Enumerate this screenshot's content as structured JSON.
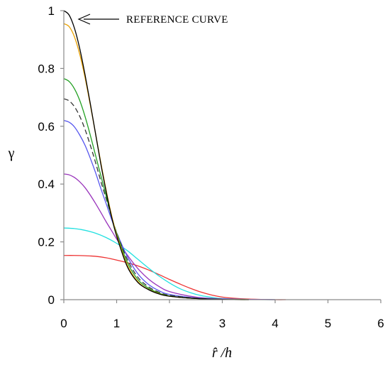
{
  "chart_data": {
    "type": "line",
    "title": "",
    "xlabel": "r̂ /h",
    "ylabel": "γ",
    "xlim": [
      0,
      6
    ],
    "ylim": [
      0,
      1
    ],
    "x_ticks": [
      "0",
      "1",
      "2",
      "3",
      "4",
      "5",
      "6"
    ],
    "y_ticks": [
      "0",
      "0.2",
      "0.4",
      "0.6",
      "0.8",
      "1"
    ],
    "grid": false,
    "legend": "none",
    "annotation": {
      "text": "REFERENCE CURVE",
      "x": 0,
      "y": 1
    },
    "series": [
      {
        "color": "#000000",
        "style": "solid",
        "points": [
          [
            0,
            1.0
          ],
          [
            0.1,
            0.985
          ],
          [
            0.2,
            0.94
          ],
          [
            0.3,
            0.87
          ],
          [
            0.4,
            0.78
          ],
          [
            0.5,
            0.68
          ],
          [
            0.6,
            0.575
          ],
          [
            0.7,
            0.47
          ],
          [
            0.8,
            0.375
          ],
          [
            0.9,
            0.29
          ],
          [
            1.0,
            0.22
          ],
          [
            1.2,
            0.115
          ],
          [
            1.4,
            0.06
          ],
          [
            1.6,
            0.035
          ],
          [
            1.8,
            0.02
          ],
          [
            2.0,
            0.012
          ],
          [
            2.5,
            0.004
          ],
          [
            3.0,
            0.001
          ],
          [
            3.5,
            0.0
          ]
        ]
      },
      {
        "color": "#E8A000",
        "style": "solid",
        "points": [
          [
            0,
            0.955
          ],
          [
            0.1,
            0.945
          ],
          [
            0.2,
            0.91
          ],
          [
            0.3,
            0.85
          ],
          [
            0.4,
            0.77
          ],
          [
            0.5,
            0.675
          ],
          [
            0.6,
            0.575
          ],
          [
            0.7,
            0.475
          ],
          [
            0.8,
            0.38
          ],
          [
            0.9,
            0.295
          ],
          [
            1.0,
            0.225
          ],
          [
            1.2,
            0.12
          ],
          [
            1.4,
            0.063
          ],
          [
            1.6,
            0.036
          ],
          [
            1.8,
            0.021
          ],
          [
            2.0,
            0.012
          ],
          [
            2.5,
            0.004
          ],
          [
            3.0,
            0.001
          ],
          [
            3.5,
            0.0
          ]
        ]
      },
      {
        "color": "#22A022",
        "style": "solid",
        "points": [
          [
            0,
            0.765
          ],
          [
            0.1,
            0.755
          ],
          [
            0.2,
            0.73
          ],
          [
            0.3,
            0.69
          ],
          [
            0.4,
            0.635
          ],
          [
            0.5,
            0.57
          ],
          [
            0.6,
            0.5
          ],
          [
            0.7,
            0.43
          ],
          [
            0.8,
            0.36
          ],
          [
            0.9,
            0.29
          ],
          [
            1.0,
            0.23
          ],
          [
            1.2,
            0.13
          ],
          [
            1.4,
            0.07
          ],
          [
            1.6,
            0.04
          ],
          [
            1.8,
            0.023
          ],
          [
            2.0,
            0.013
          ],
          [
            2.5,
            0.004
          ],
          [
            3.0,
            0.001
          ],
          [
            3.5,
            0.0
          ]
        ]
      },
      {
        "color": "#333333",
        "style": "dashed",
        "points": [
          [
            0,
            0.695
          ],
          [
            0.1,
            0.688
          ],
          [
            0.2,
            0.668
          ],
          [
            0.3,
            0.635
          ],
          [
            0.4,
            0.59
          ],
          [
            0.5,
            0.535
          ],
          [
            0.6,
            0.475
          ],
          [
            0.7,
            0.41
          ],
          [
            0.8,
            0.35
          ],
          [
            0.9,
            0.29
          ],
          [
            1.0,
            0.232
          ],
          [
            1.2,
            0.14
          ],
          [
            1.4,
            0.078
          ],
          [
            1.6,
            0.045
          ],
          [
            1.8,
            0.026
          ],
          [
            2.0,
            0.015
          ],
          [
            2.5,
            0.005
          ],
          [
            3.0,
            0.001
          ],
          [
            3.5,
            0.0
          ]
        ]
      },
      {
        "color": "#5555EE",
        "style": "solid",
        "points": [
          [
            0,
            0.62
          ],
          [
            0.1,
            0.614
          ],
          [
            0.2,
            0.598
          ],
          [
            0.3,
            0.57
          ],
          [
            0.4,
            0.535
          ],
          [
            0.5,
            0.49
          ],
          [
            0.6,
            0.44
          ],
          [
            0.7,
            0.385
          ],
          [
            0.8,
            0.333
          ],
          [
            0.9,
            0.28
          ],
          [
            1.0,
            0.232
          ],
          [
            1.2,
            0.15
          ],
          [
            1.4,
            0.09
          ],
          [
            1.6,
            0.053
          ],
          [
            1.8,
            0.031
          ],
          [
            2.0,
            0.018
          ],
          [
            2.5,
            0.006
          ],
          [
            3.0,
            0.002
          ],
          [
            3.5,
            0.0
          ]
        ]
      },
      {
        "color": "#9933BB",
        "style": "solid",
        "points": [
          [
            0,
            0.435
          ],
          [
            0.1,
            0.432
          ],
          [
            0.2,
            0.423
          ],
          [
            0.3,
            0.408
          ],
          [
            0.4,
            0.388
          ],
          [
            0.5,
            0.362
          ],
          [
            0.6,
            0.333
          ],
          [
            0.7,
            0.302
          ],
          [
            0.8,
            0.27
          ],
          [
            0.9,
            0.24
          ],
          [
            1.0,
            0.21
          ],
          [
            1.2,
            0.155
          ],
          [
            1.4,
            0.108
          ],
          [
            1.6,
            0.072
          ],
          [
            1.8,
            0.046
          ],
          [
            2.0,
            0.028
          ],
          [
            2.5,
            0.009
          ],
          [
            3.0,
            0.003
          ],
          [
            3.5,
            0.001
          ],
          [
            4.0,
            0.0
          ]
        ]
      },
      {
        "color": "#22E0E0",
        "style": "solid",
        "points": [
          [
            0,
            0.248
          ],
          [
            0.2,
            0.246
          ],
          [
            0.4,
            0.24
          ],
          [
            0.6,
            0.23
          ],
          [
            0.8,
            0.215
          ],
          [
            1.0,
            0.195
          ],
          [
            1.2,
            0.17
          ],
          [
            1.4,
            0.14
          ],
          [
            1.6,
            0.11
          ],
          [
            1.8,
            0.082
          ],
          [
            2.0,
            0.058
          ],
          [
            2.2,
            0.038
          ],
          [
            2.4,
            0.024
          ],
          [
            2.6,
            0.014
          ],
          [
            2.8,
            0.008
          ],
          [
            3.0,
            0.004
          ],
          [
            3.5,
            0.001
          ],
          [
            4.0,
            0.0
          ]
        ]
      },
      {
        "color": "#EE3333",
        "style": "solid",
        "points": [
          [
            0,
            0.153
          ],
          [
            0.2,
            0.153
          ],
          [
            0.4,
            0.152
          ],
          [
            0.6,
            0.15
          ],
          [
            0.8,
            0.145
          ],
          [
            1.0,
            0.137
          ],
          [
            1.2,
            0.128
          ],
          [
            1.4,
            0.117
          ],
          [
            1.6,
            0.103
          ],
          [
            1.8,
            0.087
          ],
          [
            2.0,
            0.07
          ],
          [
            2.2,
            0.054
          ],
          [
            2.4,
            0.039
          ],
          [
            2.6,
            0.026
          ],
          [
            2.8,
            0.016
          ],
          [
            3.0,
            0.009
          ],
          [
            3.2,
            0.005
          ],
          [
            3.5,
            0.002
          ],
          [
            4.0,
            0.0
          ],
          [
            4.2,
            0.0
          ]
        ]
      }
    ]
  }
}
